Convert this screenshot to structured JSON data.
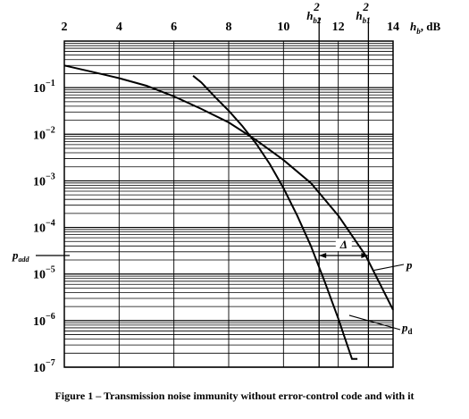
{
  "chart_data": {
    "type": "line",
    "caption": "Figure 1 – Transmission noise immunity without error-control code and with it",
    "x_axis": {
      "label": "h_b, dB",
      "range": [
        2,
        14
      ],
      "ticks": [
        2,
        4,
        6,
        8,
        10,
        12,
        14
      ],
      "tick_labels": [
        "2",
        "4",
        "6",
        "8",
        "10",
        "12",
        "14"
      ],
      "position": "top"
    },
    "y_axis": {
      "scale": "log",
      "range": [
        1e-07,
        1
      ],
      "decades": [
        -1,
        -2,
        -3,
        -4,
        -5,
        -6,
        -7
      ],
      "label": "p_add"
    },
    "grid": true,
    "series": [
      {
        "name": "p",
        "x": [
          2.0,
          3.0,
          4.0,
          5.0,
          6.0,
          7.0,
          8.0,
          9.0,
          10.0,
          11.0,
          12.0,
          13.0,
          14.0
        ],
        "y": [
          0.3,
          0.22,
          0.16,
          0.11,
          0.065,
          0.035,
          0.018,
          0.0075,
          0.0028,
          0.0009,
          0.00018,
          2.5e-05,
          1.7e-06
        ]
      },
      {
        "name": "p_d",
        "x": [
          6.7,
          7.0,
          7.5,
          8.0,
          8.5,
          9.0,
          9.5,
          10.0,
          10.5,
          11.0,
          11.5,
          12.0,
          12.5,
          12.7
        ],
        "y": [
          0.18,
          0.13,
          0.063,
          0.032,
          0.015,
          0.0063,
          0.0023,
          0.0007,
          0.00018,
          4e-05,
          7e-06,
          1.1e-06,
          1.5e-07,
          1.5e-07
        ]
      }
    ],
    "annotations": {
      "p_label": "p",
      "pd_label": "p",
      "pd_subscript": "d",
      "delta_label": "Δ",
      "hb1_label": "h",
      "hb1_sub": "b1",
      "hb1_sup": "2",
      "hb2_label": "h",
      "hb2_sub": "b2",
      "hb2_sup": "2",
      "padd_label": "p",
      "padd_sub": "add",
      "hb2_x": 11.3,
      "hb1_x": 13.1,
      "p_add_value": 2.5e-05
    }
  }
}
